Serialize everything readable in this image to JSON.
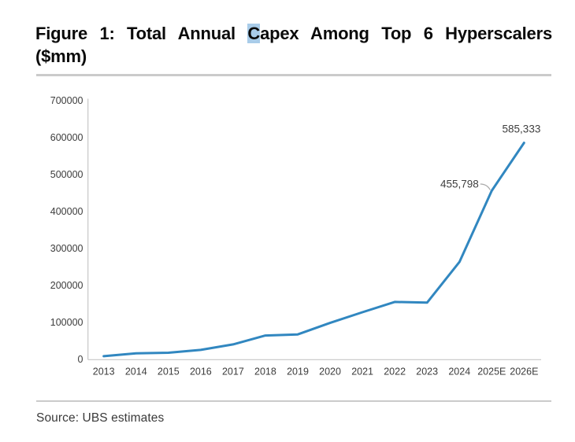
{
  "title": {
    "line1_pre": "Figure 1: Total Annual ",
    "highlight": "C",
    "line1_post": "apex Among Top 6 Hyperscalers",
    "line2": "($mm)"
  },
  "source": "Source: UBS estimates",
  "chart_data": {
    "type": "line",
    "title": "Figure 1: Total Annual Capex Among Top 6 Hyperscalers ($mm)",
    "categories": [
      "2013",
      "2014",
      "2015",
      "2016",
      "2017",
      "2018",
      "2019",
      "2020",
      "2021",
      "2022",
      "2023",
      "2024",
      "2025E",
      "2026E"
    ],
    "values": [
      8000,
      16000,
      17500,
      25000,
      40000,
      64000,
      67000,
      98000,
      127000,
      155000,
      153000,
      263000,
      455798,
      585333
    ],
    "xlabel": "",
    "ylabel": "",
    "ylim": [
      0,
      700000
    ],
    "y_ticks": [
      0,
      100000,
      200000,
      300000,
      400000,
      500000,
      600000,
      700000
    ],
    "grid": false,
    "legend": "none",
    "line_color": "#3187c0",
    "axis_color": "#c6c6c6",
    "tick_label_color": "#3c3c3c",
    "annotations": [
      {
        "label": "455,798",
        "category": "2025E",
        "index": 12
      },
      {
        "label": "585,333",
        "category": "2026E",
        "index": 13
      }
    ]
  }
}
